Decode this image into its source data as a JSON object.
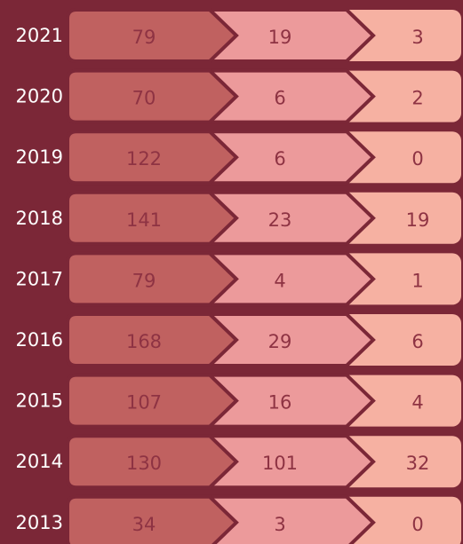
{
  "table": {
    "rows": [
      [
        "2021",
        79,
        19,
        3
      ],
      [
        "2020",
        70,
        6,
        2
      ],
      [
        "2019",
        122,
        6,
        0
      ],
      [
        "2018",
        141,
        23,
        19
      ],
      [
        "2017",
        79,
        4,
        1
      ],
      [
        "2016",
        168,
        29,
        6
      ],
      [
        "2015",
        107,
        16,
        4
      ],
      [
        "2014",
        130,
        101,
        32
      ],
      [
        "2013",
        34,
        3,
        0
      ]
    ]
  }
}
